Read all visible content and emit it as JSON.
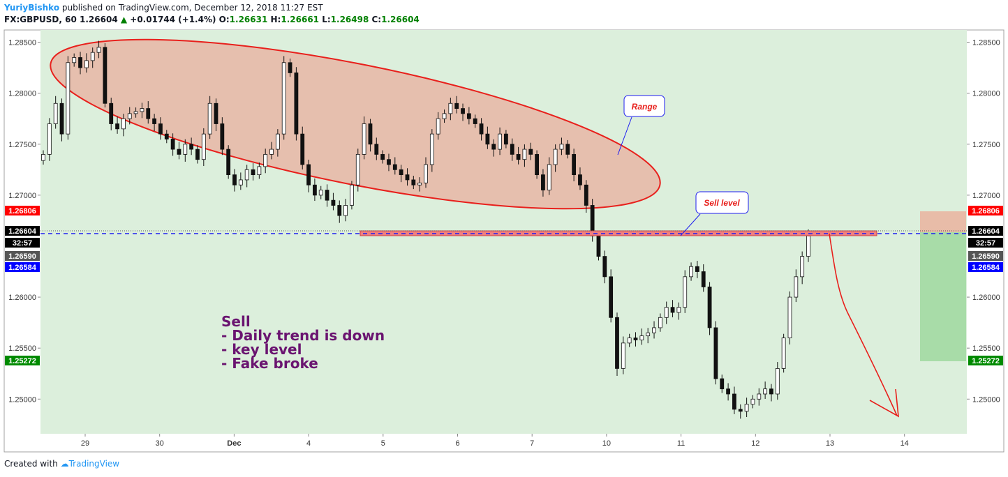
{
  "header": {
    "author": "YuriyBishko",
    "published": "published on TradingView.com, December 12, 2018 11:27 EST",
    "symbol": "FX:GBPUSD, 60",
    "last": "1.26604",
    "change": "+0.01744 (+1.4%)",
    "o_label": "O:",
    "o": "1.26631",
    "h_label": "H:",
    "h": "1.26661",
    "l_label": "L:",
    "l": "1.26498",
    "c_label": "C:",
    "c": "1.26604"
  },
  "footer": {
    "created": "Created with",
    "brand": "TradingView"
  },
  "annotations": {
    "range": "Range",
    "sell_level": "Sell level",
    "notes": [
      "Sell",
      "- Daily trend is down",
      "- key level",
      "- Fake broke"
    ]
  },
  "colors": {
    "plot_bg": "#dcefdc",
    "ellipse_fill": "#e6bfae",
    "ellipse_stroke": "#e8201c",
    "level_zone": "#f08080",
    "dashed_line": "#1e1ef0",
    "target_zone": "#a8dca8",
    "stop_zone": "#e8bca8",
    "note_text": "#6a1470"
  },
  "price_badges": [
    {
      "label": "1.26806",
      "bg": "#ff0000",
      "fg": "#ffffff"
    },
    {
      "label": "1.26604",
      "bg": "#000000",
      "fg": "#ffffff"
    },
    {
      "label": "32:57",
      "bg": "#000000",
      "fg": "#ffffff"
    },
    {
      "label": "1.26590",
      "bg": "#555555",
      "fg": "#ffffff"
    },
    {
      "label": "1.26584",
      "bg": "#0000ff",
      "fg": "#ffffff"
    },
    {
      "label": "1.25272",
      "bg": "#008a00",
      "fg": "#ffffff"
    }
  ],
  "chart_data": {
    "type": "candlestick",
    "symbol": "FX:GBPUSD",
    "timeframe": "60",
    "y_axis_ticks": [
      "1.28500",
      "1.28000",
      "1.27500",
      "1.27000",
      "1.26000",
      "1.25500",
      "1.25000"
    ],
    "ylim": [
      1.2466,
      1.2862
    ],
    "x_axis_ticks": [
      "29",
      "30",
      "Dec",
      "4",
      "5",
      "6",
      "7",
      "10",
      "11",
      "12",
      "13",
      "14"
    ],
    "sell_level": 1.2659,
    "stop_level": 1.26806,
    "target_level": 1.25272,
    "closes": [
      1.274,
      1.277,
      1.279,
      1.276,
      1.283,
      1.2835,
      1.2825,
      1.2832,
      1.284,
      1.2845,
      1.279,
      1.277,
      1.2765,
      1.2775,
      1.278,
      1.2782,
      1.2785,
      1.2775,
      1.277,
      1.276,
      1.2755,
      1.2745,
      1.274,
      1.275,
      1.2745,
      1.2735,
      1.276,
      1.279,
      1.277,
      1.2745,
      1.272,
      1.271,
      1.2715,
      1.2725,
      1.272,
      1.2728,
      1.274,
      1.2745,
      1.276,
      1.283,
      1.282,
      1.276,
      1.273,
      1.271,
      1.27,
      1.2705,
      1.2695,
      1.269,
      1.268,
      1.269,
      1.271,
      1.274,
      1.277,
      1.275,
      1.274,
      1.2735,
      1.273,
      1.2725,
      1.272,
      1.2715,
      1.271,
      1.2712,
      1.273,
      1.276,
      1.2775,
      1.278,
      1.279,
      1.2785,
      1.278,
      1.2775,
      1.277,
      1.276,
      1.275,
      1.2745,
      1.276,
      1.275,
      1.274,
      1.2735,
      1.2745,
      1.274,
      1.272,
      1.2705,
      1.273,
      1.2745,
      1.275,
      1.274,
      1.272,
      1.271,
      1.269,
      1.266,
      1.264,
      1.262,
      1.258,
      1.253,
      1.2555,
      1.256,
      1.2558,
      1.2562,
      1.2565,
      1.257,
      1.258,
      1.259,
      1.2585,
      1.259,
      1.262,
      1.263,
      1.2625,
      1.261,
      1.257,
      1.252,
      1.251,
      1.2505,
      1.249,
      1.2488,
      1.2495,
      1.25,
      1.2505,
      1.251,
      1.2505,
      1.253,
      1.256,
      1.26,
      1.262,
      1.264,
      1.266
    ]
  }
}
